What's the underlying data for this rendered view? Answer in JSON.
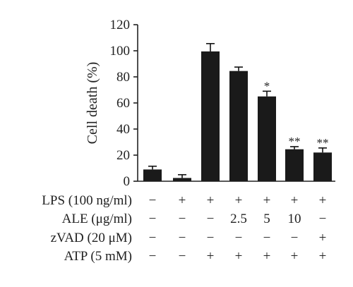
{
  "chart_data": {
    "type": "bar",
    "ylabel": "Cell death (%)",
    "ylim": [
      0,
      120
    ],
    "yticks": [
      "0",
      "20",
      "40",
      "60",
      "80",
      "100",
      "120"
    ],
    "bar_color": "#1a1a1a",
    "values": [
      9,
      2.5,
      99.5,
      84.5,
      65,
      24.5,
      22
    ],
    "errors": [
      2.5,
      2.5,
      6,
      3,
      4,
      2,
      3.5
    ],
    "significance": [
      "",
      "",
      "",
      "",
      "*",
      "**",
      "**"
    ],
    "conditions": [
      {
        "label": "LPS (100 ng/ml)",
        "values": [
          "−",
          "+",
          "+",
          "+",
          "+",
          "+",
          "+"
        ]
      },
      {
        "label": "ALE (μg/ml)",
        "values": [
          "−",
          "−",
          "−",
          "2.5",
          "5",
          "10",
          "−"
        ]
      },
      {
        "label": "zVAD (20 μM)",
        "values": [
          "−",
          "−",
          "−",
          "−",
          "−",
          "−",
          "+"
        ]
      },
      {
        "label": "ATP (5 mM)",
        "values": [
          "−",
          "−",
          "+",
          "+",
          "+",
          "+",
          "+"
        ]
      }
    ]
  }
}
